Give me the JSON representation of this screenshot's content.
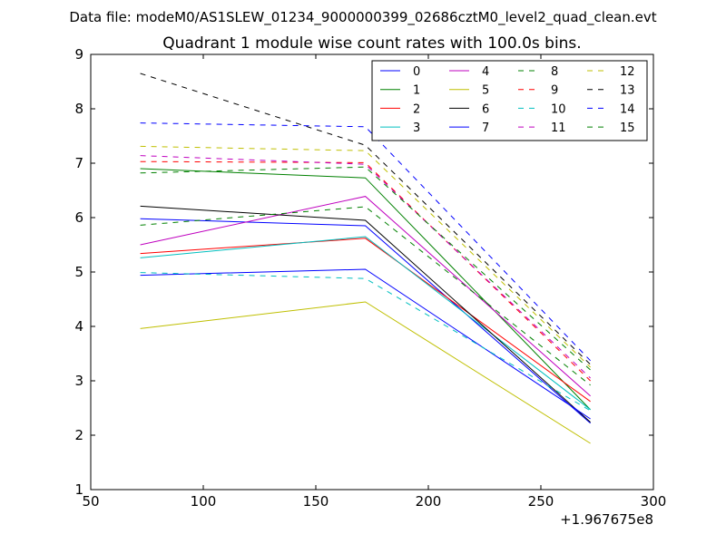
{
  "suptitle": "Data file: modeM0/AS1SLEW_01234_9000000399_02686cztM0_level2_quad_clean.evt",
  "chart_data": {
    "type": "line",
    "title": "Quadrant 1 module wise count rates with 100.0s bins.",
    "xlabel": "",
    "ylabel": "",
    "x_offset_label": "+1.967675e8",
    "xlim": [
      50,
      300
    ],
    "ylim": [
      1,
      9
    ],
    "x_ticks": [
      50,
      100,
      150,
      200,
      250,
      300
    ],
    "y_ticks": [
      1,
      2,
      3,
      4,
      5,
      6,
      7,
      8,
      9
    ],
    "x": [
      72,
      172,
      272
    ],
    "grid": false,
    "legend_position": "top-right",
    "legend_columns": 4,
    "series": [
      {
        "name": "0",
        "color": "#0000ff",
        "style": "solid",
        "values": [
          5.98,
          5.85,
          2.22
        ]
      },
      {
        "name": "1",
        "color": "#008000",
        "style": "solid",
        "values": [
          6.9,
          6.73,
          2.47
        ]
      },
      {
        "name": "2",
        "color": "#ff0000",
        "style": "solid",
        "values": [
          5.34,
          5.62,
          2.62
        ]
      },
      {
        "name": "3",
        "color": "#00bfbf",
        "style": "solid",
        "values": [
          5.26,
          5.65,
          2.47
        ]
      },
      {
        "name": "4",
        "color": "#bf00bf",
        "style": "solid",
        "values": [
          5.5,
          6.39,
          2.72
        ]
      },
      {
        "name": "5",
        "color": "#bfbf00",
        "style": "solid",
        "values": [
          3.96,
          4.45,
          1.85
        ]
      },
      {
        "name": "6",
        "color": "#000000",
        "style": "solid",
        "values": [
          6.21,
          5.95,
          2.24
        ]
      },
      {
        "name": "7",
        "color": "#0000ff",
        "style": "solid",
        "values": [
          4.94,
          5.05,
          2.3
        ]
      },
      {
        "name": "8",
        "color": "#008000",
        "style": "dashed",
        "values": [
          5.86,
          6.2,
          2.92
        ]
      },
      {
        "name": "9",
        "color": "#ff0000",
        "style": "dashed",
        "values": [
          7.03,
          7.01,
          3.0
        ]
      },
      {
        "name": "10",
        "color": "#00bfbf",
        "style": "dashed",
        "values": [
          4.99,
          4.88,
          2.45
        ]
      },
      {
        "name": "11",
        "color": "#bf00bf",
        "style": "dashed",
        "values": [
          7.14,
          6.98,
          3.05
        ]
      },
      {
        "name": "12",
        "color": "#bfbf00",
        "style": "dashed",
        "values": [
          7.31,
          7.23,
          3.25
        ]
      },
      {
        "name": "13",
        "color": "#000000",
        "style": "dashed",
        "values": [
          8.65,
          7.33,
          3.3
        ]
      },
      {
        "name": "14",
        "color": "#0000ff",
        "style": "dashed",
        "values": [
          7.74,
          7.67,
          3.37
        ]
      },
      {
        "name": "15",
        "color": "#008000",
        "style": "dashed",
        "values": [
          6.82,
          6.93,
          3.2
        ]
      }
    ]
  }
}
